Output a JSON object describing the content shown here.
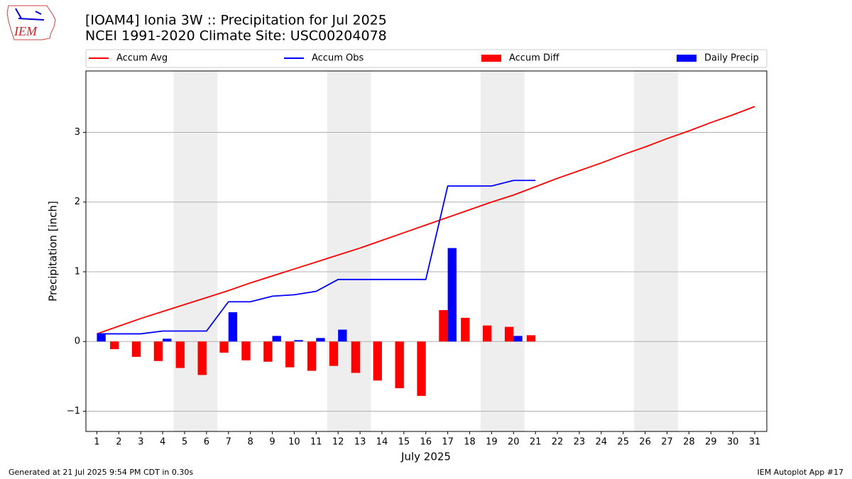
{
  "logo_text": "IEM",
  "chart_data": {
    "type": "combo",
    "title": "[IOAM4] Ionia 3W :: Precipitation for Jul 2025",
    "subtitle": "NCEI 1991-2020 Climate Site: USC00204078",
    "x_label": "July 2025",
    "y_label": "Precipitation [inch]",
    "x": [
      1,
      2,
      3,
      4,
      5,
      6,
      7,
      8,
      9,
      10,
      11,
      12,
      13,
      14,
      15,
      16,
      17,
      18,
      19,
      20,
      21,
      22,
      23,
      24,
      25,
      26,
      27,
      28,
      29,
      30,
      31
    ],
    "xlim": [
      0.5,
      31.55
    ],
    "xticks": [
      1,
      2,
      3,
      4,
      5,
      6,
      7,
      8,
      9,
      10,
      11,
      12,
      13,
      14,
      15,
      16,
      17,
      18,
      19,
      20,
      21,
      22,
      23,
      24,
      25,
      26,
      27,
      28,
      29,
      30,
      31
    ],
    "ylim": [
      -1.29,
      3.88
    ],
    "yticks": [
      {
        "value": -1,
        "label": "−1"
      },
      0,
      1,
      2,
      3
    ],
    "grid": true,
    "shaded_spans": [
      [
        4.5,
        6.5
      ],
      [
        11.5,
        13.5
      ],
      [
        18.5,
        20.5
      ],
      [
        25.5,
        27.5
      ]
    ],
    "series": [
      {
        "name": "Accum Avg",
        "kind": "line",
        "color": "#ff0000",
        "values": [
          0.11,
          0.22,
          0.33,
          0.43,
          0.53,
          0.63,
          0.73,
          0.84,
          0.94,
          1.04,
          1.14,
          1.24,
          1.34,
          1.45,
          1.56,
          1.67,
          1.78,
          1.89,
          2.0,
          2.1,
          2.22,
          2.34,
          2.45,
          2.56,
          2.68,
          2.79,
          2.91,
          3.02,
          3.14,
          3.25,
          3.37
        ]
      },
      {
        "name": "Accum Obs",
        "kind": "line",
        "color": "#0000ff",
        "values": [
          0.11,
          0.11,
          0.11,
          0.15,
          0.15,
          0.15,
          0.57,
          0.57,
          0.65,
          0.67,
          0.72,
          0.89,
          0.89,
          0.89,
          0.89,
          0.89,
          2.23,
          2.23,
          2.23,
          2.31,
          2.31,
          null,
          null,
          null,
          null,
          null,
          null,
          null,
          null,
          null,
          null
        ]
      },
      {
        "name": "Accum Diff",
        "kind": "bar",
        "color": "#ff0000",
        "values": [
          0,
          -0.11,
          -0.22,
          -0.28,
          -0.38,
          -0.48,
          -0.16,
          -0.27,
          -0.29,
          -0.37,
          -0.42,
          -0.35,
          -0.45,
          -0.56,
          -0.67,
          -0.78,
          0.45,
          0.34,
          0.23,
          0.21,
          0.09,
          null,
          null,
          null,
          null,
          null,
          null,
          null,
          null,
          null,
          null
        ]
      },
      {
        "name": "Daily Precip",
        "kind": "bar",
        "color": "#0000ff",
        "values": [
          0.11,
          0,
          0,
          0.04,
          0,
          0,
          0.42,
          0,
          0.08,
          0.02,
          0.05,
          0.17,
          0,
          0,
          0,
          0,
          1.34,
          0,
          0,
          0.08,
          0,
          null,
          null,
          null,
          null,
          null,
          null,
          null,
          null,
          null,
          null
        ]
      }
    ],
    "footer_left": "Generated at 21 Jul 2025 9:54 PM CDT in 0.30s",
    "footer_right": "IEM Autoplot App #17"
  }
}
